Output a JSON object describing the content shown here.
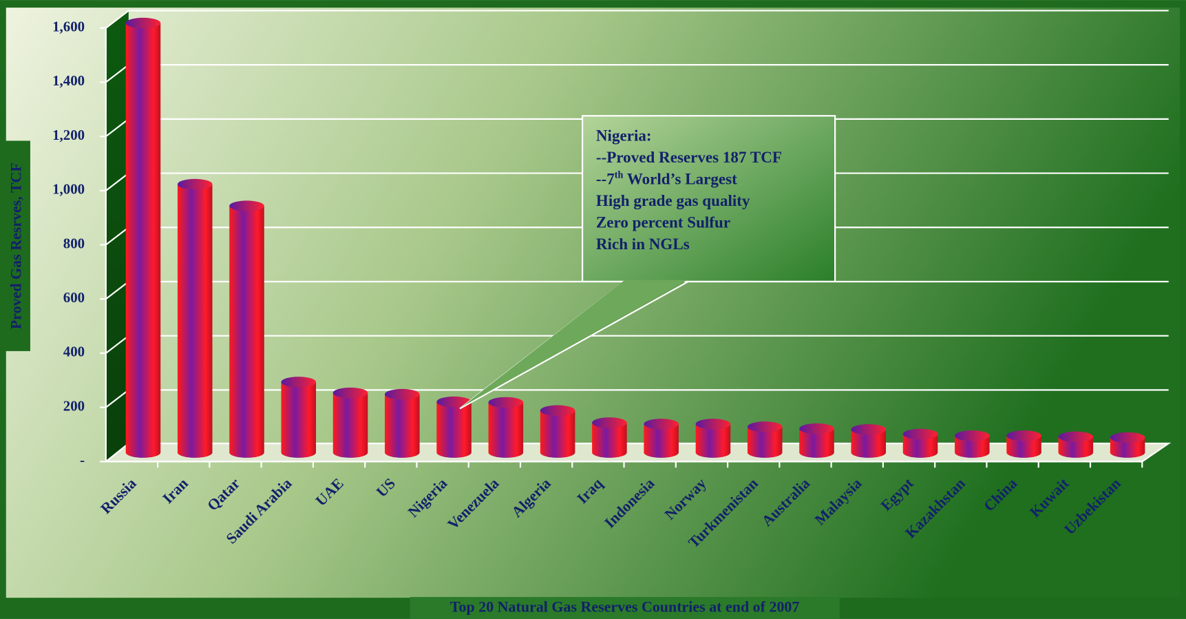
{
  "chart_data": {
    "type": "bar",
    "title": "Top 20 Natural Gas Reserves Countries at end of 2007",
    "y_label": "Proved Gas Resrves, TCF",
    "categories": [
      "Russia",
      "Iran",
      "Qatar",
      "Saudi Arabia",
      "UAE",
      "US",
      "Nigeria",
      "Venezuela",
      "Algeria",
      "Iraq",
      "Indonesia",
      "Norway",
      "Turkmenistan",
      "Australia",
      "Malaysia",
      "Egypt",
      "Kazakhstan",
      "China",
      "Kuwait",
      "Uzbekistan"
    ],
    "values": [
      1585,
      990,
      910,
      260,
      220,
      215,
      187,
      185,
      155,
      110,
      105,
      105,
      95,
      88,
      85,
      68,
      62,
      62,
      58,
      55
    ],
    "ylim": [
      0,
      1600
    ],
    "yticks": [
      {
        "value": 0,
        "label": "-"
      },
      200,
      400,
      600,
      800,
      {
        "value": 1000,
        "label": "1,000"
      },
      {
        "value": 1200,
        "label": "1,200"
      },
      {
        "value": 1400,
        "label": "1,400"
      },
      {
        "value": 1600,
        "label": "1,600"
      }
    ],
    "grid": true,
    "annotation": {
      "lines": [
        "Nigeria:",
        "--Proved Reserves 187 TCF",
        {
          "parts": [
            "--7",
            "th",
            " World’s Largest"
          ]
        },
        "High grade gas quality",
        "Zero percent Sulfur",
        "Rich in NGLs"
      ],
      "target": "Nigeria"
    }
  }
}
